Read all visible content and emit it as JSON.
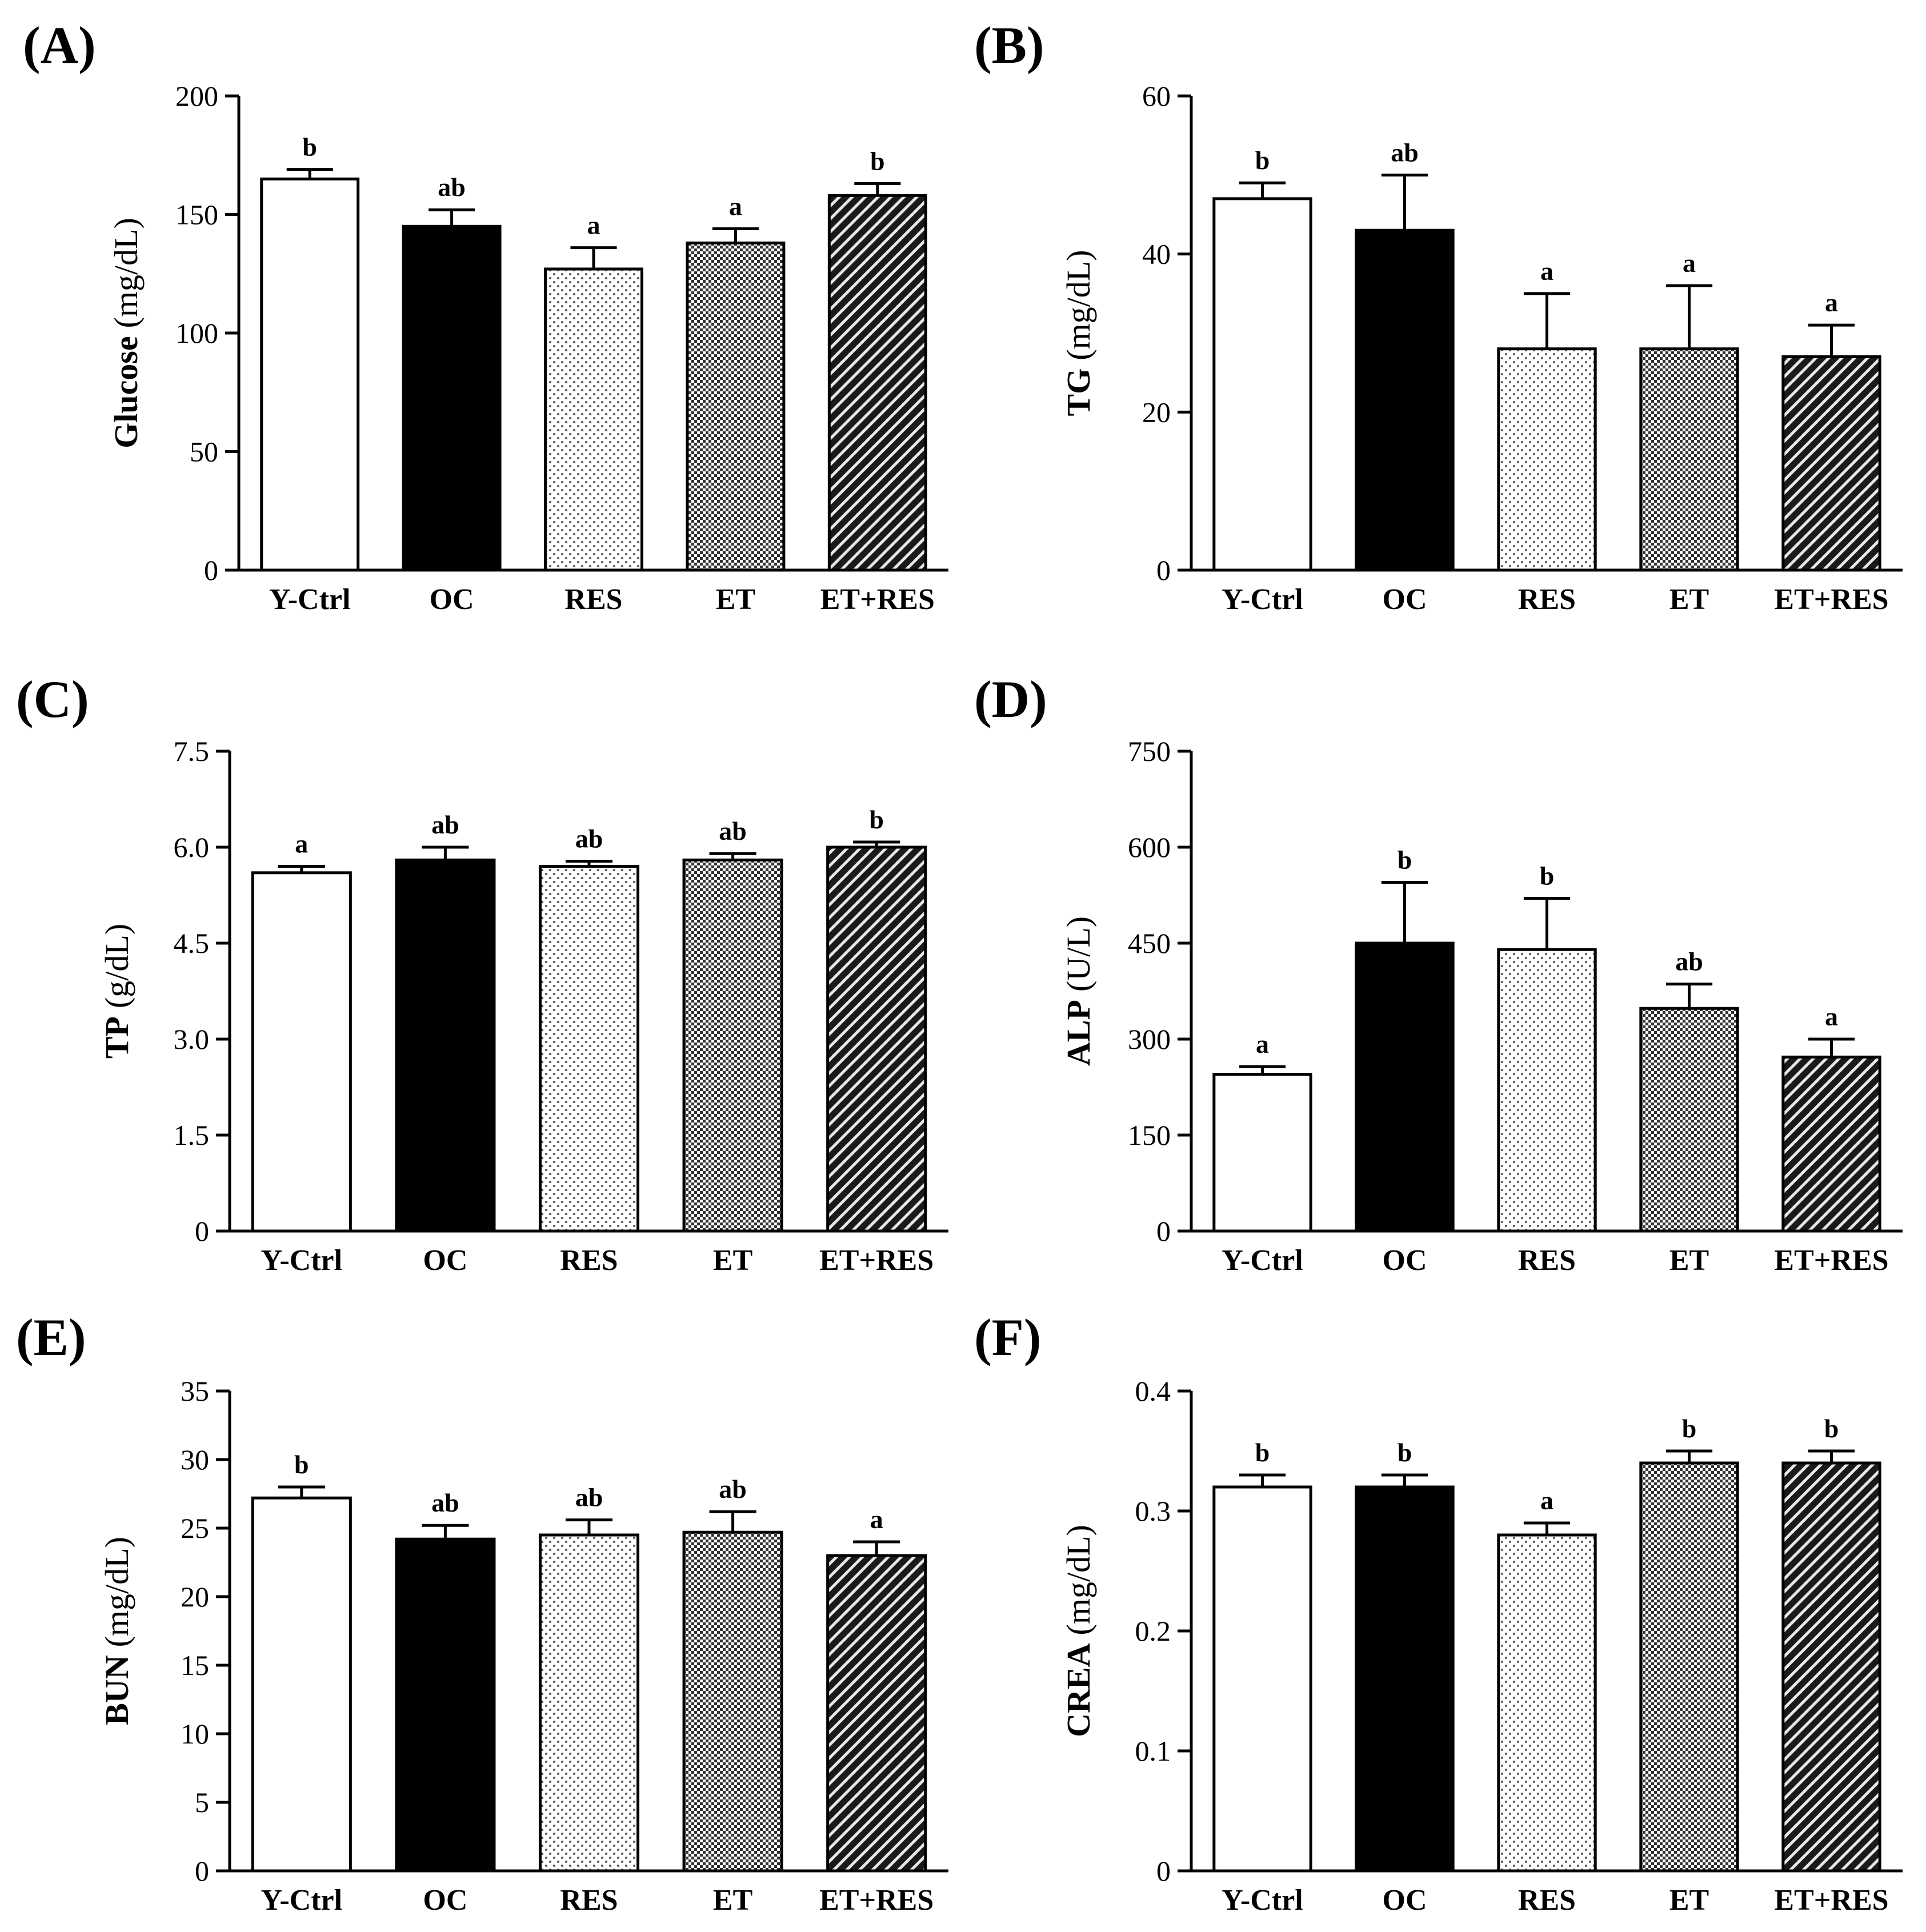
{
  "chart_data": [
    {
      "type": "bar",
      "panel": "(A)",
      "ylabel": "Glucose",
      "yunit": "(mg/dL)",
      "ylim": [
        0,
        200
      ],
      "yticks": [
        0,
        50,
        100,
        150,
        200
      ],
      "categories": [
        "Y-Ctrl",
        "OC",
        "RES",
        "ET",
        "ET+RES"
      ],
      "values": [
        165,
        145,
        127,
        138,
        158
      ],
      "errors": [
        4,
        7,
        9,
        6,
        5
      ],
      "significance": [
        "b",
        "ab",
        "a",
        "a",
        "b"
      ]
    },
    {
      "type": "bar",
      "panel": "(B)",
      "ylabel": "TG",
      "yunit": "(mg/dL)",
      "ylim": [
        0,
        60
      ],
      "yticks": [
        0,
        20,
        40,
        60
      ],
      "categories": [
        "Y-Ctrl",
        "OC",
        "RES",
        "ET",
        "ET+RES"
      ],
      "values": [
        47,
        43,
        28,
        28,
        27
      ],
      "errors": [
        2,
        7,
        7,
        8,
        4
      ],
      "significance": [
        "b",
        "ab",
        "a",
        "a",
        "a"
      ]
    },
    {
      "type": "bar",
      "panel": "(C)",
      "ylabel": "TP",
      "yunit": "(g/dL)",
      "ylim": [
        0,
        7.5
      ],
      "yticks": [
        "0",
        "1.5",
        "3.0",
        "4.5",
        "6.0",
        "7.5"
      ],
      "categories": [
        "Y-Ctrl",
        "OC",
        "RES",
        "ET",
        "ET+RES"
      ],
      "values": [
        5.6,
        5.8,
        5.7,
        5.8,
        6.0
      ],
      "errors": [
        0.1,
        0.2,
        0.08,
        0.1,
        0.08
      ],
      "significance": [
        "a",
        "ab",
        "ab",
        "ab",
        "b"
      ]
    },
    {
      "type": "bar",
      "panel": "(D)",
      "ylabel": "ALP",
      "yunit": "(U/L)",
      "ylim": [
        0,
        750
      ],
      "yticks": [
        0,
        150,
        300,
        450,
        600,
        750
      ],
      "categories": [
        "Y-Ctrl",
        "OC",
        "RES",
        "ET",
        "ET+RES"
      ],
      "values": [
        245,
        450,
        440,
        348,
        272
      ],
      "errors": [
        12,
        95,
        80,
        38,
        28
      ],
      "significance": [
        "a",
        "b",
        "b",
        "ab",
        "a"
      ]
    },
    {
      "type": "bar",
      "panel": "(E)",
      "ylabel": "BUN",
      "yunit": "(mg/dL)",
      "ylim": [
        0,
        35
      ],
      "yticks": [
        0,
        5,
        10,
        15,
        20,
        25,
        30,
        35
      ],
      "categories": [
        "Y-Ctrl",
        "OC",
        "RES",
        "ET",
        "ET+RES"
      ],
      "values": [
        27.2,
        24.2,
        24.5,
        24.7,
        23.0
      ],
      "errors": [
        0.8,
        1.0,
        1.1,
        1.5,
        1.0
      ],
      "significance": [
        "b",
        "ab",
        "ab",
        "ab",
        "a"
      ]
    },
    {
      "type": "bar",
      "panel": "(F)",
      "ylabel": "CREA",
      "yunit": "(mg/dL)",
      "ylim": [
        0,
        0.4
      ],
      "yticks": [
        "0",
        "0.1",
        "0.2",
        "0.3",
        "0.4"
      ],
      "categories": [
        "Y-Ctrl",
        "OC",
        "RES",
        "ET",
        "ET+RES"
      ],
      "values": [
        0.32,
        0.32,
        0.28,
        0.34,
        0.34
      ],
      "errors": [
        0.01,
        0.01,
        0.01,
        0.01,
        0.01
      ],
      "significance": [
        "b",
        "b",
        "a",
        "b",
        "b"
      ]
    }
  ]
}
